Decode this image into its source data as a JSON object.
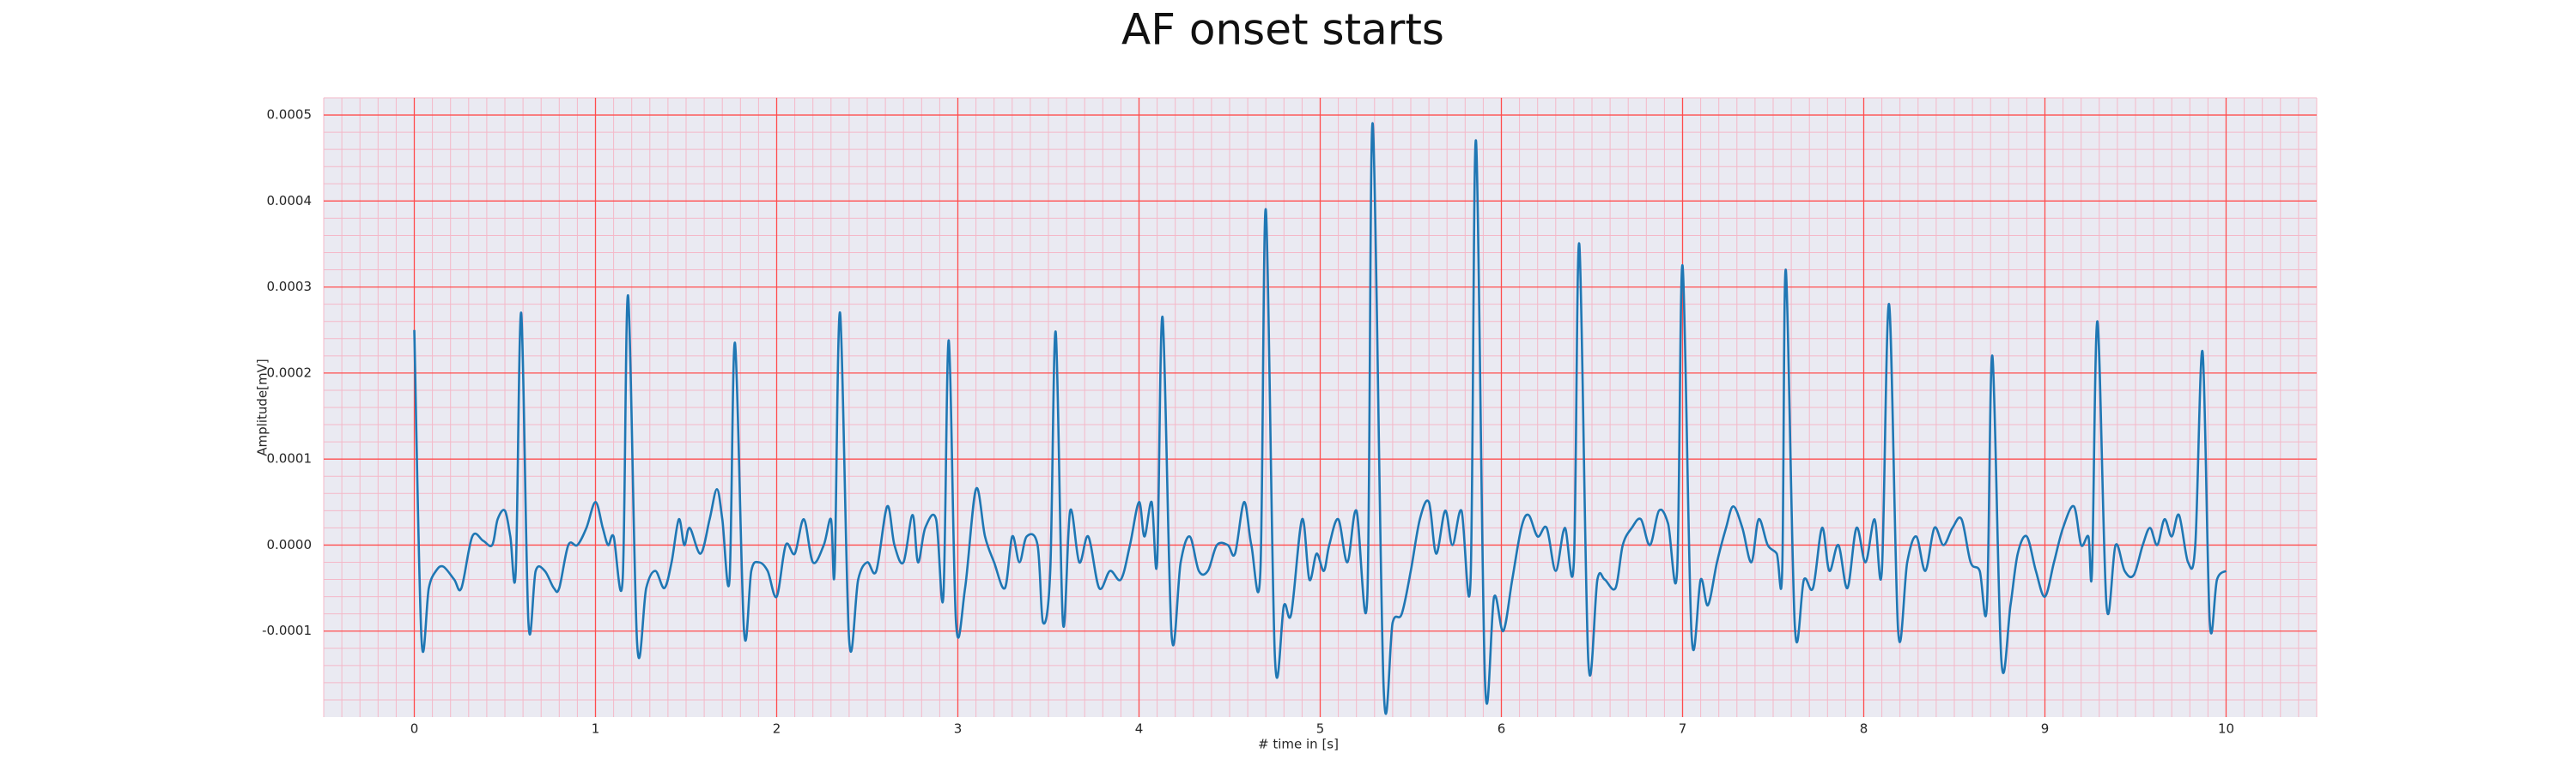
{
  "chart_data": {
    "type": "line",
    "title": "AF onset starts",
    "xlabel": "# time in [s]",
    "ylabel": "Amplitude[mV]",
    "xlim": [
      -0.5,
      10.5
    ],
    "ylim": [
      -0.0002,
      0.00052
    ],
    "xticks": [
      0,
      1,
      2,
      3,
      4,
      5,
      6,
      7,
      8,
      9,
      10
    ],
    "yticks": [
      -0.0001,
      {
        "value": 0,
        "label": "0.0000"
      },
      0.0001,
      0.0002,
      0.0003,
      0.0004,
      0.0005
    ],
    "grid": true,
    "minor_grid": true,
    "grid_color": "#ff4d4d",
    "minor_grid_color": "#f4b8c8",
    "background": "#eaeaf2",
    "x": [
      0,
      0.04,
      0.08,
      0.12,
      0.16,
      0.22,
      0.26,
      0.32,
      0.38,
      0.43,
      0.46,
      0.5,
      0.53,
      0.56,
      0.59,
      0.63,
      0.67,
      0.72,
      0.77,
      0.8,
      0.85,
      0.9,
      0.95,
      1.0,
      1.04,
      1.07,
      1.1,
      1.15,
      1.18,
      1.23,
      1.28,
      1.33,
      1.38,
      1.42,
      1.46,
      1.49,
      1.52,
      1.58,
      1.63,
      1.67,
      1.7,
      1.74,
      1.77,
      1.82,
      1.86,
      1.9,
      1.95,
      2.0,
      2.05,
      2.1,
      2.15,
      2.2,
      2.26,
      2.3,
      2.32,
      2.35,
      2.4,
      2.45,
      2.5,
      2.55,
      2.61,
      2.65,
      2.7,
      2.75,
      2.78,
      2.82,
      2.88,
      2.92,
      2.95,
      2.99,
      3.04,
      3.1,
      3.15,
      3.2,
      3.26,
      3.3,
      3.34,
      3.38,
      3.44,
      3.47,
      3.51,
      3.54,
      3.58,
      3.62,
      3.67,
      3.72,
      3.78,
      3.84,
      3.9,
      3.95,
      4.0,
      4.03,
      4.07,
      4.1,
      4.13,
      4.18,
      4.23,
      4.28,
      4.33,
      4.38,
      4.43,
      4.49,
      4.53,
      4.58,
      4.62,
      4.67,
      4.7,
      4.75,
      4.8,
      4.84,
      4.9,
      4.94,
      4.98,
      5.02,
      5.05,
      5.1,
      5.15,
      5.2,
      5.26,
      5.29,
      5.35,
      5.4,
      5.45,
      5.5,
      5.55,
      5.6,
      5.64,
      5.69,
      5.73,
      5.78,
      5.83,
      5.86,
      5.91,
      5.96,
      6.01,
      6.06,
      6.11,
      6.15,
      6.2,
      6.25,
      6.3,
      6.35,
      6.4,
      6.43,
      6.48,
      6.53,
      6.57,
      6.63,
      6.67,
      6.72,
      6.77,
      6.82,
      6.87,
      6.92,
      6.97,
      7,
      7.05,
      7.1,
      7.14,
      7.19,
      7.24,
      7.28,
      7.33,
      7.38,
      7.42,
      7.47,
      7.52,
      7.55,
      7.57,
      7.62,
      7.67,
      7.72,
      7.77,
      7.81,
      7.86,
      7.91,
      7.96,
      8.01,
      8.06,
      8.1,
      8.14,
      8.19,
      8.24,
      8.29,
      8.34,
      8.39,
      8.44,
      8.49,
      8.54,
      8.59,
      8.64,
      8.68,
      8.71,
      8.76,
      8.81,
      8.85,
      8.9,
      8.95,
      9.0,
      9.05,
      9.1,
      9.16,
      9.2,
      9.24,
      9.26,
      9.29,
      9.34,
      9.39,
      9.44,
      9.49,
      9.54,
      9.58,
      9.62,
      9.66,
      9.7,
      9.74,
      9.79,
      9.83,
      9.87,
      9.91,
      9.95,
      10
    ],
    "series": [
      {
        "color": "#1f77b4",
        "values": [
          0.00025,
          -0.00011,
          -5e-05,
          -3e-05,
          -2.5e-05,
          -4e-05,
          -5e-05,
          1e-05,
          5e-06,
          0,
          3e-05,
          4e-05,
          1e-05,
          -3e-05,
          0.00027,
          -9e-05,
          -3e-05,
          -3e-05,
          -5e-05,
          -5e-05,
          0,
          0,
          2e-05,
          5e-05,
          2e-05,
          0,
          1e-05,
          -4e-05,
          0.00029,
          -0.000115,
          -5e-05,
          -3e-05,
          -5e-05,
          -2e-05,
          3e-05,
          0,
          2e-05,
          -1e-05,
          3e-05,
          6.5e-05,
          3e-05,
          -4e-05,
          0.000235,
          -0.0001,
          -3e-05,
          -2e-05,
          -3e-05,
          -6e-05,
          0,
          -1e-05,
          3e-05,
          -2e-05,
          0,
          3e-05,
          -3e-05,
          0.00027,
          -0.00011,
          -4e-05,
          -2e-05,
          -3e-05,
          4.5e-05,
          0,
          -2e-05,
          3.5e-05,
          -2e-05,
          2e-05,
          3e-05,
          -6e-05,
          0.000238,
          -9e-05,
          -5e-05,
          6.5e-05,
          1e-05,
          -2e-05,
          -5e-05,
          1e-05,
          -2e-05,
          1e-05,
          0,
          -9e-05,
          -3e-05,
          0.000248,
          -9e-05,
          4e-05,
          -2e-05,
          1e-05,
          -5e-05,
          -3e-05,
          -4e-05,
          0,
          5e-05,
          1e-05,
          5e-05,
          -2e-05,
          0.000265,
          -0.000105,
          -2e-05,
          1e-05,
          -3e-05,
          -3e-05,
          0,
          0,
          -1e-05,
          5e-05,
          0,
          -3e-05,
          0.00039,
          -0.00013,
          -7e-05,
          -8e-05,
          3e-05,
          -4e-05,
          -1e-05,
          -3e-05,
          0,
          3e-05,
          -2e-05,
          4e-05,
          -6e-05,
          0.00049,
          -0.000165,
          -9e-05,
          -8e-05,
          -3e-05,
          3e-05,
          5e-05,
          -1e-05,
          4e-05,
          0,
          4e-05,
          -4e-05,
          0.00047,
          -0.00016,
          -6e-05,
          -0.0001,
          -4e-05,
          2e-05,
          3.5e-05,
          1e-05,
          2e-05,
          -3e-05,
          2e-05,
          -2e-05,
          0.00035,
          -0.000135,
          -4e-05,
          -4e-05,
          -5e-05,
          0,
          2e-05,
          3e-05,
          0,
          4e-05,
          2.5e-05,
          -3e-05,
          0.000325,
          -0.000105,
          -4e-05,
          -7e-05,
          -2e-05,
          2e-05,
          4.5e-05,
          2e-05,
          -2e-05,
          3e-05,
          0,
          -1e-05,
          -3e-05,
          0.00032,
          -9.5e-05,
          -4e-05,
          -5e-05,
          2e-05,
          -3e-05,
          0,
          -5e-05,
          2e-05,
          -2e-05,
          3e-05,
          -3e-05,
          0.00028,
          -0.0001,
          -2e-05,
          1e-05,
          -3e-05,
          2e-05,
          0,
          2e-05,
          3e-05,
          -2e-05,
          -3e-05,
          -7e-05,
          0.00022,
          -0.000135,
          -7e-05,
          -1e-05,
          1e-05,
          -3e-05,
          -6e-05,
          -2e-05,
          2e-05,
          4.5e-05,
          0,
          1e-05,
          -3e-05,
          0.00026,
          -7e-05,
          0,
          -3e-05,
          -3.5e-05,
          0,
          2e-05,
          0,
          3e-05,
          1e-05,
          3.5e-05,
          -2e-05,
          0,
          0.000225,
          -9e-05,
          -4e-05,
          -3e-05
        ]
      }
    ]
  }
}
